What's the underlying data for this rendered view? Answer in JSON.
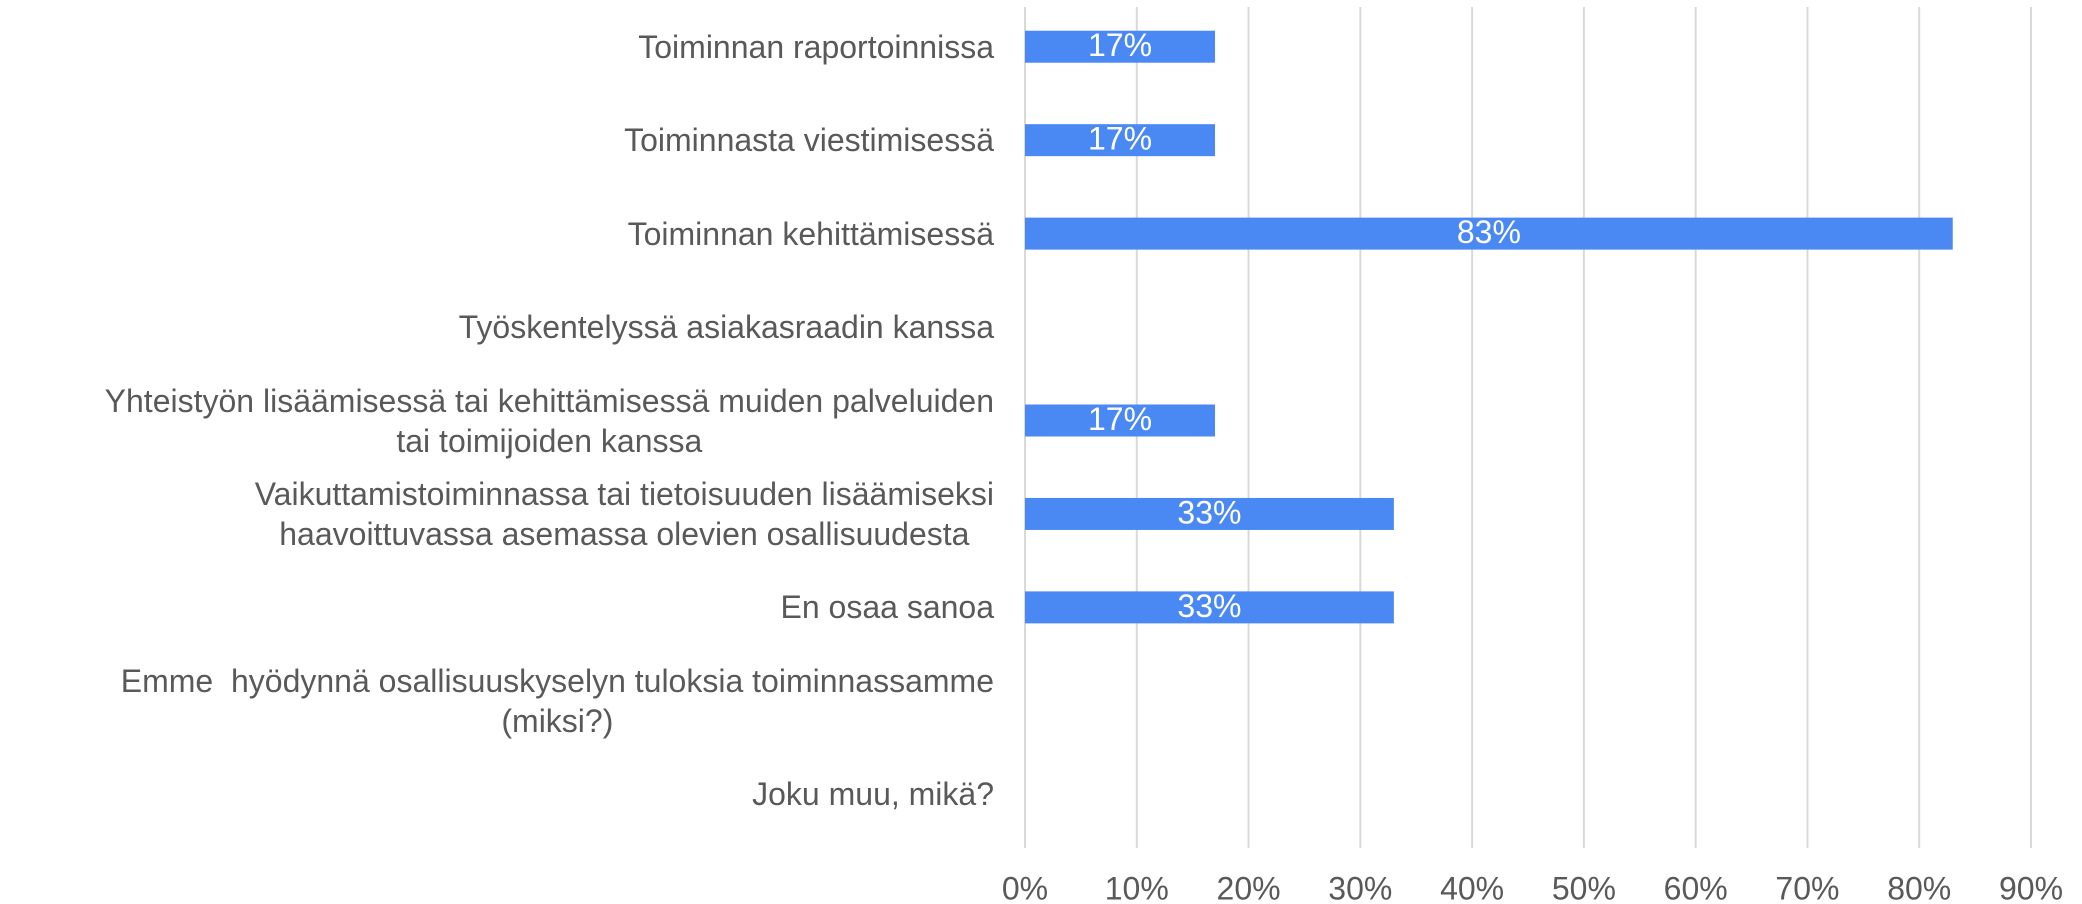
{
  "chart_data": {
    "type": "bar",
    "orientation": "horizontal",
    "categories": [
      "Toiminnan raportoinnissa",
      "Toiminnasta viestimisessä",
      "Toiminnan kehittämisessä",
      "Työskentelyssä asiakasraadin kanssa",
      "Yhteistyön lisäämisessä tai kehittämisessä muiden palveluiden\ntai toimijoiden kanssa",
      "Vaikuttamistoiminnassa tai tietoisuuden lisäämiseksi\nhaavoittuvassa asemassa olevien osallisuudesta",
      "En osaa sanoa",
      "Emme  hyödynnä osallisuuskyselyn tuloksia toiminnassamme\n(miksi?)",
      "Joku muu, mikä?"
    ],
    "values": [
      17,
      17,
      83,
      0,
      17,
      33,
      33,
      0,
      0
    ],
    "value_labels": [
      "17%",
      "17%",
      "83%",
      null,
      "17%",
      "33%",
      "33%",
      null,
      null
    ],
    "color": "#4a89f3",
    "xlim": [
      0,
      90
    ],
    "xticks": [
      {
        "value": 0,
        "label": "0%"
      },
      {
        "value": 10,
        "label": "10%"
      },
      {
        "value": 20,
        "label": "20%"
      },
      {
        "value": 30,
        "label": "30%"
      },
      {
        "value": 40,
        "label": "40%"
      },
      {
        "value": 50,
        "label": "50%"
      },
      {
        "value": 60,
        "label": "60%"
      },
      {
        "value": 70,
        "label": "70%"
      },
      {
        "value": 80,
        "label": "80%"
      },
      {
        "value": 90,
        "label": "90%"
      }
    ],
    "grid": true
  }
}
